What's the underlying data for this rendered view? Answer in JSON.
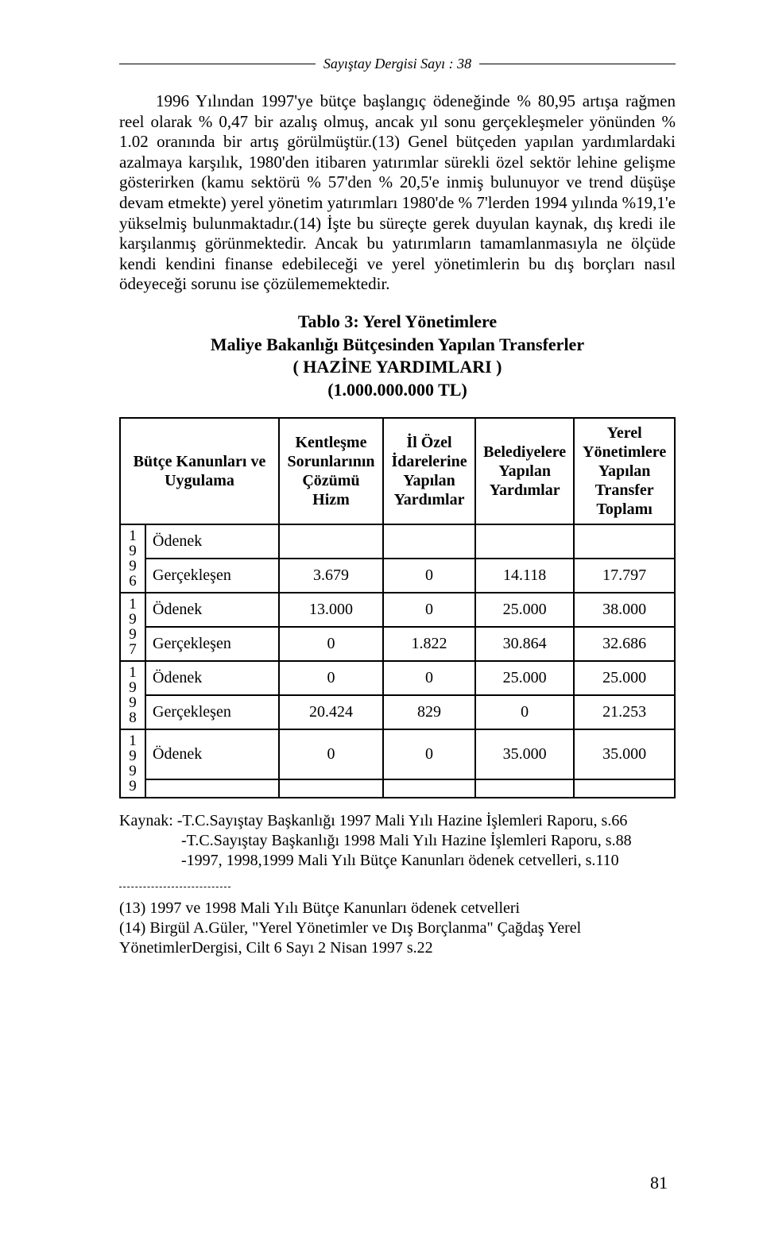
{
  "header": {
    "running": "Sayıştay Dergisi Sayı : 38"
  },
  "paragraph": "1996 Yılından 1997'ye bütçe başlangıç ödeneğinde % 80,95 artışa rağmen reel olarak % 0,47 bir azalış olmuş, ancak yıl sonu gerçekleşmeler yönünden % 1.02 oranında bir artış görülmüştür.(13) Genel bütçeden yapılan yardımlardaki azalmaya karşılık, 1980'den itibaren yatırımlar sürekli özel sektör lehine gelişme gösterirken (kamu sektörü % 57'den % 20,5'e inmiş bulunuyor ve trend düşüşe devam etmekte) yerel yönetim yatırımları 1980'de % 7'lerden 1994 yılında %19,1'e yükselmiş bulunmaktadır.(14) İşte bu süreçte gerek duyulan kaynak, dış kredi ile karşılanmış görünmektedir. Ancak bu yatırımların tamamlanmasıyla ne ölçüde kendi kendini finanse edebileceği ve yerel yönetimlerin bu dış borçları nasıl ödeyeceği sorunu ise çözülememektedir.",
  "table": {
    "title_line1": "Tablo 3: Yerel Yönetimlere",
    "title_line2": "Maliye Bakanlığı Bütçesinden Yapılan Transferler",
    "title_line3": "( HAZİNE YARDIMLARI )",
    "title_line4": "(1.000.000.000 TL)",
    "columns": {
      "c0": "Bütçe Kanunları ve Uygulama",
      "c1": "Kentleşme Sorunlarının Çözümü Hizm",
      "c2": "İl Özel İdarelerine Yapılan Yardımlar",
      "c3": "Belediyelere Yapılan Yardımlar",
      "c4": "Yerel Yönetimlere Yapılan Transfer Toplamı"
    },
    "groups": [
      {
        "year": "1996",
        "rows": [
          {
            "label": "Ödenek",
            "v1": "",
            "v2": "",
            "v3": "",
            "v4": ""
          },
          {
            "label": "Gerçekleşen",
            "v1": "3.679",
            "v2": "0",
            "v3": "14.118",
            "v4": "17.797"
          }
        ]
      },
      {
        "year": "1997",
        "rows": [
          {
            "label": "Ödenek",
            "v1": "13.000",
            "v2": "0",
            "v3": "25.000",
            "v4": "38.000"
          },
          {
            "label": "Gerçekleşen",
            "v1": "0",
            "v2": "1.822",
            "v3": "30.864",
            "v4": "32.686"
          }
        ]
      },
      {
        "year": "1998",
        "rows": [
          {
            "label": "Ödenek",
            "v1": "0",
            "v2": "0",
            "v3": "25.000",
            "v4": "25.000"
          },
          {
            "label": "Gerçekleşen",
            "v1": "20.424",
            "v2": "829",
            "v3": "0",
            "v4": "21.253"
          }
        ]
      },
      {
        "year": "1999",
        "rows": [
          {
            "label": "Ödenek",
            "v1": "0",
            "v2": "0",
            "v3": "35.000",
            "v4": "35.000"
          },
          {
            "label": "",
            "v1": "",
            "v2": "",
            "v3": "",
            "v4": ""
          }
        ]
      }
    ]
  },
  "source": {
    "line1": "Kaynak: -T.C.Sayıştay Başkanlığı 1997 Mali Yılı Hazine İşlemleri Raporu, s.66",
    "line2": "-T.C.Sayıştay Başkanlığı 1998 Mali Yılı Hazine İşlemleri Raporu, s.88",
    "line3": "-1997, 1998,1999 Mali Yılı Bütçe Kanunları ödenek cetvelleri, s.110"
  },
  "footnotes": {
    "f13": "(13) 1997 ve 1998 Mali Yılı Bütçe Kanunları ödenek cetvelleri",
    "f14": "(14) Birgül A.Güler, \"Yerel Yönetimler ve Dış Borçlanma\" Çağdaş Yerel YönetimlerDergisi, Cilt 6 Sayı 2 Nisan 1997 s.22"
  },
  "page_number": "81"
}
